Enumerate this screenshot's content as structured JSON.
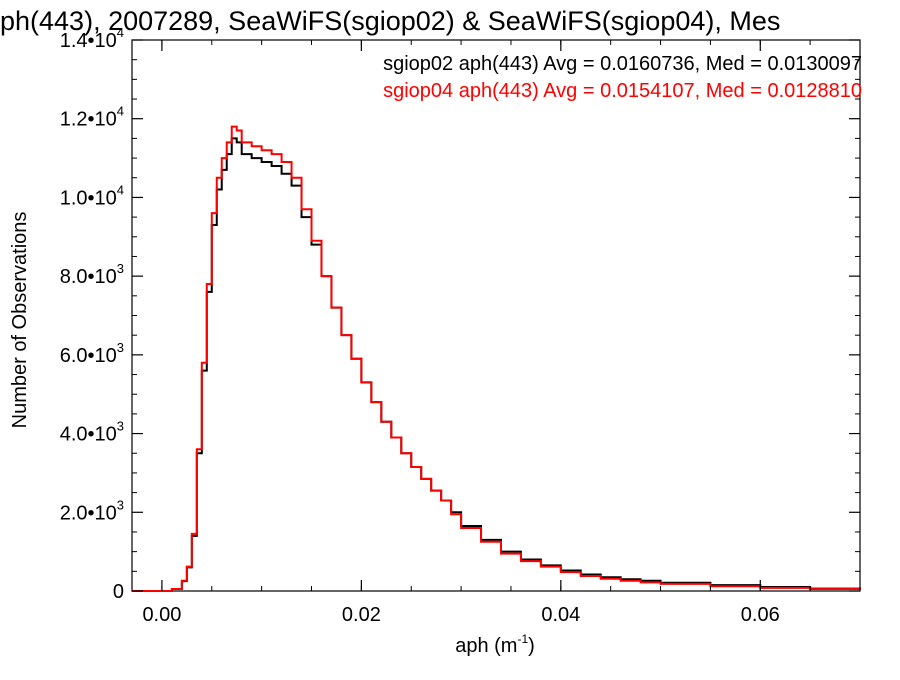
{
  "chart_data": {
    "type": "line",
    "title": "ph(443), 2007289, SeaWiFS(sgiop02) & SeaWiFS(sgiop04), Mes",
    "xlabel": "aph (m",
    "xlabel_superscript": "-1",
    "xlabel_suffix": ")",
    "ylabel": "Number of Observations",
    "xlim": [
      -0.003,
      0.07
    ],
    "ylim": [
      0,
      14000
    ],
    "grid": false,
    "legend_position": "top-right",
    "x_ticks": [
      {
        "value": 0.0,
        "label": "0.00"
      },
      {
        "value": 0.02,
        "label": "0.02"
      },
      {
        "value": 0.04,
        "label": "0.04"
      },
      {
        "value": 0.06,
        "label": "0.06"
      }
    ],
    "y_ticks": [
      {
        "value": 0,
        "mantissa": "0",
        "exponent": ""
      },
      {
        "value": 2000,
        "mantissa": "2.0•10",
        "exponent": "3"
      },
      {
        "value": 4000,
        "mantissa": "4.0•10",
        "exponent": "3"
      },
      {
        "value": 6000,
        "mantissa": "6.0•10",
        "exponent": "3"
      },
      {
        "value": 8000,
        "mantissa": "8.0•10",
        "exponent": "3"
      },
      {
        "value": 10000,
        "mantissa": "1.0•10",
        "exponent": "4"
      },
      {
        "value": 12000,
        "mantissa": "1.2•10",
        "exponent": "4"
      },
      {
        "value": 14000,
        "mantissa": "1.4•10",
        "exponent": "4"
      }
    ],
    "legend": [
      {
        "text": "sgiop02 aph(443) Avg = 0.0160736, Med = 0.0130097",
        "color": "#000000"
      },
      {
        "text": "sgiop04 aph(443) Avg = 0.0154107, Med = 0.0128810",
        "color": "#ff0000"
      }
    ],
    "series": [
      {
        "color": "#000000",
        "x": [
          -0.003,
          0.0,
          0.001,
          0.002,
          0.0025,
          0.003,
          0.0035,
          0.004,
          0.0045,
          0.005,
          0.0055,
          0.006,
          0.0065,
          0.007,
          0.0075,
          0.008,
          0.009,
          0.01,
          0.011,
          0.012,
          0.013,
          0.014,
          0.015,
          0.016,
          0.017,
          0.018,
          0.019,
          0.02,
          0.021,
          0.022,
          0.023,
          0.024,
          0.025,
          0.026,
          0.027,
          0.028,
          0.029,
          0.03,
          0.032,
          0.034,
          0.036,
          0.038,
          0.04,
          0.042,
          0.044,
          0.046,
          0.048,
          0.05,
          0.055,
          0.06,
          0.065,
          0.07
        ],
        "values": [
          0,
          0,
          50,
          250,
          600,
          1400,
          3500,
          5600,
          7600,
          9300,
          10200,
          10700,
          11100,
          11500,
          11400,
          11100,
          11000,
          10900,
          10800,
          10600,
          10300,
          9500,
          8800,
          8000,
          7200,
          6500,
          5900,
          5300,
          4800,
          4300,
          3900,
          3500,
          3150,
          2850,
          2550,
          2300,
          2000,
          1650,
          1300,
          1000,
          800,
          650,
          520,
          420,
          350,
          300,
          260,
          210,
          150,
          100,
          60,
          30
        ]
      },
      {
        "color": "#ff0000",
        "x": [
          -0.003,
          0.0,
          0.001,
          0.002,
          0.0025,
          0.003,
          0.0035,
          0.004,
          0.0045,
          0.005,
          0.0055,
          0.006,
          0.0065,
          0.007,
          0.0075,
          0.008,
          0.009,
          0.01,
          0.011,
          0.012,
          0.013,
          0.014,
          0.015,
          0.016,
          0.017,
          0.018,
          0.019,
          0.02,
          0.021,
          0.022,
          0.023,
          0.024,
          0.025,
          0.026,
          0.027,
          0.028,
          0.029,
          0.03,
          0.032,
          0.034,
          0.036,
          0.038,
          0.04,
          0.042,
          0.044,
          0.046,
          0.048,
          0.05,
          0.055,
          0.06,
          0.065,
          0.07
        ],
        "values": [
          0,
          0,
          50,
          260,
          620,
          1450,
          3600,
          5800,
          7800,
          9600,
          10500,
          11000,
          11400,
          11800,
          11700,
          11400,
          11300,
          11200,
          11100,
          10900,
          10500,
          9700,
          8900,
          8000,
          7200,
          6500,
          5900,
          5300,
          4800,
          4300,
          3900,
          3500,
          3150,
          2850,
          2550,
          2300,
          1950,
          1600,
          1250,
          950,
          760,
          620,
          480,
          380,
          310,
          260,
          220,
          180,
          120,
          80,
          50,
          25
        ]
      }
    ]
  }
}
